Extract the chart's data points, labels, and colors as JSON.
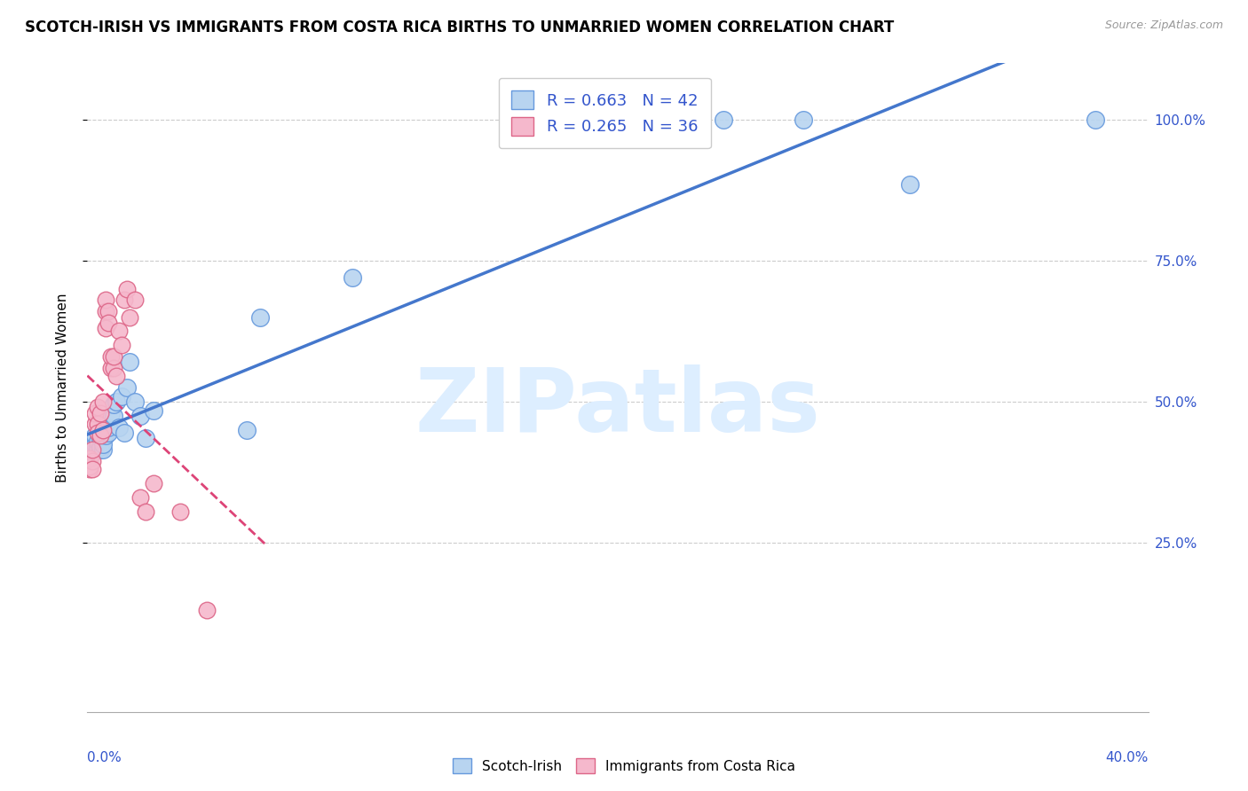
{
  "title": "SCOTCH-IRISH VS IMMIGRANTS FROM COSTA RICA BIRTHS TO UNMARRIED WOMEN CORRELATION CHART",
  "source": "Source: ZipAtlas.com",
  "ylabel": "Births to Unmarried Women",
  "R_blue": 0.663,
  "N_blue": 42,
  "R_pink": 0.265,
  "N_pink": 36,
  "blue_color": "#b8d4f0",
  "blue_edge_color": "#6699dd",
  "blue_line_color": "#4477cc",
  "pink_color": "#f5b8cc",
  "pink_edge_color": "#dd6688",
  "pink_line_color": "#dd4477",
  "watermark_color": "#ddeeff",
  "legend_color": "#3355cc",
  "xlim": [
    0.0,
    0.4
  ],
  "ylim": [
    -0.05,
    1.1
  ],
  "y_ticks": [
    0.25,
    0.5,
    0.75,
    1.0
  ],
  "y_tick_labels": [
    "25.0%",
    "50.0%",
    "75.0%",
    "100.0%"
  ],
  "scotch_irish_x": [
    0.001,
    0.001,
    0.002,
    0.002,
    0.002,
    0.003,
    0.003,
    0.003,
    0.004,
    0.004,
    0.004,
    0.005,
    0.005,
    0.005,
    0.006,
    0.006,
    0.007,
    0.007,
    0.008,
    0.008,
    0.009,
    0.01,
    0.01,
    0.011,
    0.012,
    0.013,
    0.014,
    0.015,
    0.016,
    0.018,
    0.02,
    0.022,
    0.025,
    0.06,
    0.065,
    0.1,
    0.175,
    0.21,
    0.24,
    0.27,
    0.31,
    0.38
  ],
  "scotch_irish_y": [
    0.415,
    0.42,
    0.43,
    0.415,
    0.41,
    0.415,
    0.425,
    0.44,
    0.415,
    0.42,
    0.43,
    0.415,
    0.42,
    0.435,
    0.415,
    0.425,
    0.44,
    0.445,
    0.445,
    0.455,
    0.48,
    0.475,
    0.495,
    0.5,
    0.455,
    0.51,
    0.445,
    0.525,
    0.57,
    0.5,
    0.475,
    0.435,
    0.485,
    0.45,
    0.65,
    0.72,
    0.985,
    0.985,
    1.0,
    1.0,
    0.885,
    1.0
  ],
  "costa_rica_x": [
    0.001,
    0.001,
    0.001,
    0.002,
    0.002,
    0.002,
    0.003,
    0.003,
    0.004,
    0.004,
    0.004,
    0.005,
    0.005,
    0.006,
    0.006,
    0.007,
    0.007,
    0.007,
    0.008,
    0.008,
    0.009,
    0.009,
    0.01,
    0.01,
    0.011,
    0.012,
    0.013,
    0.014,
    0.015,
    0.016,
    0.018,
    0.02,
    0.022,
    0.025,
    0.035,
    0.045
  ],
  "costa_rica_y": [
    0.38,
    0.4,
    0.385,
    0.395,
    0.415,
    0.38,
    0.46,
    0.48,
    0.49,
    0.46,
    0.445,
    0.44,
    0.48,
    0.45,
    0.5,
    0.63,
    0.66,
    0.68,
    0.66,
    0.64,
    0.56,
    0.58,
    0.56,
    0.58,
    0.545,
    0.625,
    0.6,
    0.68,
    0.7,
    0.65,
    0.68,
    0.33,
    0.305,
    0.355,
    0.305,
    0.13
  ]
}
